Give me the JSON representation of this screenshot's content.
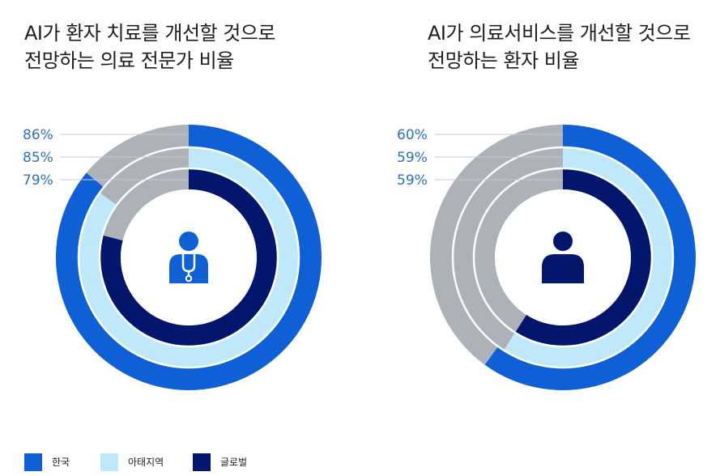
{
  "colors": {
    "korea": "#0f5fd6",
    "apac": "#bfe9fb",
    "global": "#03166b",
    "remainder": "#adb1b8",
    "label": "#2f6fbd",
    "leader": "#c7c9cd",
    "icon": "#0f5fd6",
    "icon_person": "#03166b"
  },
  "icons": [
    "doctor-icon",
    "patient-icon"
  ],
  "chart_data": [
    {
      "type": "pie",
      "subtype": "nested-donut",
      "title_lines": [
        "AI가 환자 치료를 개선할 것으로",
        "전망하는 의료 전문가 비율"
      ],
      "series": [
        {
          "name": "한국",
          "value": 86,
          "label": "86%"
        },
        {
          "name": "아태지역",
          "value": 85,
          "label": "85%"
        },
        {
          "name": "글로벌",
          "value": 79,
          "label": "79%"
        }
      ],
      "icon": "doctor-icon"
    },
    {
      "type": "pie",
      "subtype": "nested-donut",
      "title_lines": [
        "AI가 의료서비스를 개선할 것으로",
        "전망하는 환자 비율"
      ],
      "series": [
        {
          "name": "한국",
          "value": 60,
          "label": "60%"
        },
        {
          "name": "아태지역",
          "value": 59,
          "label": "59%"
        },
        {
          "name": "글로벌",
          "value": 59,
          "label": "59%"
        }
      ],
      "icon": "patient-icon"
    }
  ],
  "legend": [
    {
      "name": "한국",
      "color_key": "korea"
    },
    {
      "name": "아태지역",
      "color_key": "apac"
    },
    {
      "name": "글로벌",
      "color_key": "global"
    }
  ]
}
